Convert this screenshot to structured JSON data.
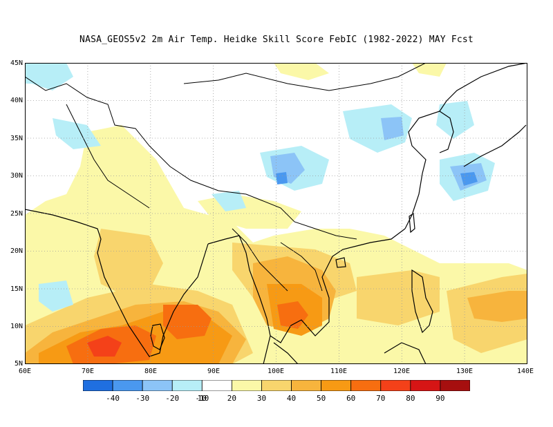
{
  "title": "NASA_GEOS5v2  2m Air Temp. Heidke Skill Score FebIC (1982-2022) MAY Fcst",
  "colors": {
    "ocean_bg": "#ffffff",
    "land_line": "#000000",
    "grid": "#9a9a9a",
    "cool_3": "#1f6fe0",
    "cool_2": "#4a98ef",
    "cool_1": "#8cc4f7",
    "cool_0": "#b7eef7",
    "neutral": "#ffffff",
    "warm_1": "#fbf8a8",
    "warm_2": "#f8d56d",
    "warm_3": "#f7b43d",
    "warm_4": "#f79a14",
    "warm_5": "#f76e10",
    "warm_6": "#f44119",
    "warm_7": "#d61515",
    "warm_8": "#a60f0f"
  },
  "map": {
    "lon_range": [
      60,
      140
    ],
    "lat_range": [
      5,
      45
    ],
    "lat_labels": [
      "45N",
      "40N",
      "35N",
      "30N",
      "25N",
      "20N",
      "15N",
      "10N",
      "5N"
    ],
    "lon_labels": [
      "60E",
      "70E",
      "80E",
      "90E",
      "100E",
      "110E",
      "120E",
      "130E",
      "140E"
    ]
  },
  "colorbar": {
    "colors": [
      "#1f6fe0",
      "#4a98ef",
      "#8cc4f7",
      "#b7eef7",
      "#ffffff",
      "#fbf8a8",
      "#f8d56d",
      "#f7b43d",
      "#f79a14",
      "#f76e10",
      "#f44119",
      "#d61515",
      "#a60f0f"
    ],
    "labels": [
      "-40",
      "-30",
      "-20",
      "-10",
      "10",
      "20",
      "30",
      "40",
      "50",
      "60",
      "70",
      "80",
      "90"
    ]
  }
}
